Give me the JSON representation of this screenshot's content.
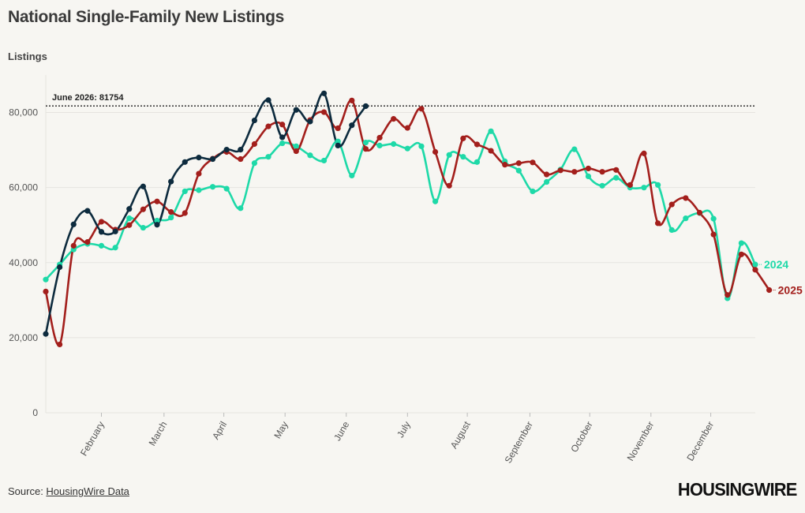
{
  "header": {
    "title": "National Single-Family New Listings"
  },
  "footer": {
    "source_prefix": "Source: ",
    "source_link": "HousingWire Data",
    "logo_text": "HOUSINGWIRE"
  },
  "colors": {
    "2024": "#1ed9a8",
    "2025": "#a31f1c",
    "2026": "#0d2b3e",
    "reference": "#333333",
    "grid": "#e6e4df",
    "background": "#f7f6f2"
  },
  "chart_data": {
    "type": "line",
    "ylabel": "Listings",
    "ylim": [
      0,
      90000
    ],
    "yticks": [
      0,
      20000,
      40000,
      60000,
      80000
    ],
    "ytick_labels": [
      "0",
      "20,000",
      "40,000",
      "60,000",
      "80,000"
    ],
    "xlim": [
      1,
      52
    ],
    "x_month_labels": [
      {
        "label": "February",
        "week": 5
      },
      {
        "label": "March",
        "week": 9.5
      },
      {
        "label": "April",
        "week": 13.8
      },
      {
        "label": "May",
        "week": 18.2
      },
      {
        "label": "June",
        "week": 22.6
      },
      {
        "label": "July",
        "week": 27
      },
      {
        "label": "August",
        "week": 31.3
      },
      {
        "label": "September",
        "week": 35.8
      },
      {
        "label": "October",
        "week": 40.1
      },
      {
        "label": "November",
        "week": 44.5
      },
      {
        "label": "December",
        "week": 48.8
      }
    ],
    "reference_line": {
      "value": 81754,
      "label": "June 2026: 81754"
    },
    "series": [
      {
        "name": "2024",
        "values": [
          35500,
          39500,
          43500,
          45000,
          44500,
          44000,
          51800,
          49300,
          51200,
          52000,
          59000,
          59300,
          60200,
          59700,
          54500,
          66500,
          68200,
          71800,
          71000,
          68600,
          67200,
          72300,
          63200,
          72000,
          71200,
          71600,
          70400,
          71000,
          56300,
          68700,
          68200,
          66800,
          75000,
          67000,
          64500,
          59000,
          61500,
          64800,
          70200,
          63000,
          60500,
          62600,
          60000,
          60000,
          60700,
          48700,
          51800,
          53200,
          51700,
          30500,
          45200,
          39500
        ],
        "end_label": "2024"
      },
      {
        "name": "2025",
        "values": [
          32300,
          18200,
          44500,
          45500,
          50900,
          48800,
          50000,
          54200,
          56300,
          53500,
          53200,
          63700,
          67700,
          69500,
          67600,
          71600,
          76300,
          76800,
          69700,
          78000,
          80100,
          75800,
          83200,
          70300,
          73300,
          78300,
          75900,
          81000,
          69500,
          60500,
          73100,
          71500,
          69800,
          66100,
          66500,
          66700,
          63500,
          64600,
          64200,
          65100,
          64200,
          64700,
          60700,
          69100,
          50500,
          55500,
          57200,
          53300,
          47500,
          31400,
          42200,
          38100,
          32700
        ],
        "end_label": "2025"
      },
      {
        "name": "2026",
        "values": [
          21000,
          38800,
          50200,
          53800,
          48200,
          48300,
          54300,
          60300,
          50100,
          61600,
          66800,
          68000,
          67600,
          70100,
          70100,
          77900,
          83300,
          73400,
          80700,
          77600,
          85100,
          71200,
          76600,
          81700
        ]
      }
    ]
  }
}
